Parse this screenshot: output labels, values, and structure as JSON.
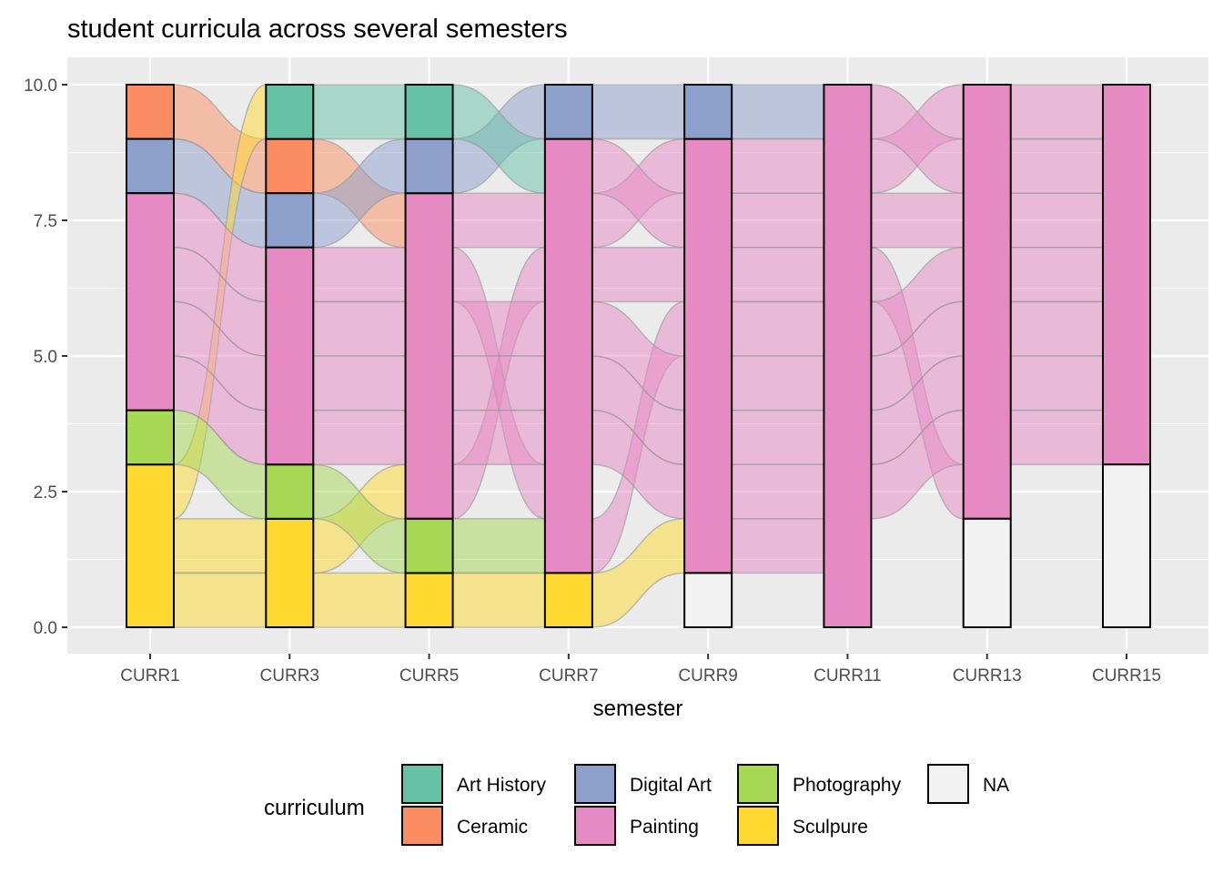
{
  "chart_data": {
    "type": "alluvial",
    "title": "student curricula across several semesters",
    "xlabel": "semester",
    "ylabel": "",
    "ylim": [
      0,
      10
    ],
    "yticks": [
      "0.0",
      "2.5",
      "5.0",
      "7.5",
      "10.0"
    ],
    "yticks_values": [
      0,
      2.5,
      5,
      7.5,
      10
    ],
    "categories": [
      "CURR1",
      "CURR3",
      "CURR5",
      "CURR7",
      "CURR9",
      "CURR11",
      "CURR13",
      "CURR15"
    ],
    "legend": {
      "title": "curriculum",
      "placement": "bottom",
      "entries": [
        "Art History",
        "Ceramic",
        "Digital Art",
        "Painting",
        "Photography",
        "Sculpure",
        "NA"
      ]
    },
    "colors": {
      "Art History": "#66C2A5",
      "Ceramic": "#FC8D62",
      "Digital Art": "#8DA0CB",
      "Painting": "#E78AC3",
      "Photography": "#A6D854",
      "Sculpure": "#FFD92F",
      "NA": "#F2F2F2"
    },
    "grid": true,
    "students": [
      [
        "Ceramic",
        "Ceramic",
        "Painting",
        "Painting",
        "Painting",
        "Painting",
        "Painting",
        "Painting"
      ],
      [
        "Digital Art",
        "Digital Art",
        "Digital Art",
        "Digital Art",
        "Digital Art",
        "Painting",
        "Painting",
        "Painting"
      ],
      [
        "Sculpure",
        "Art History",
        "Art History",
        "Painting",
        "Painting",
        "Painting",
        "Painting",
        "Painting"
      ],
      [
        "Sculpure",
        "Sculpure",
        "Painting",
        "Painting",
        "Painting",
        "Painting",
        "Painting",
        "NA"
      ],
      [
        "Sculpure",
        "Sculpure",
        "Sculpure",
        "Sculpure",
        "Painting",
        "Painting",
        "NA",
        "NA"
      ],
      [
        "Photography",
        "Photography",
        "Photography",
        "Painting",
        "Painting",
        "Painting",
        "Painting",
        "Painting"
      ],
      [
        "Painting",
        "Painting",
        "Painting",
        "Painting",
        "NA",
        "Painting",
        "NA",
        "NA"
      ],
      [
        "Painting",
        "Painting",
        "Painting",
        "Painting",
        "Painting",
        "Painting",
        "Painting",
        "Painting"
      ],
      [
        "Painting",
        "Painting",
        "Painting",
        "Painting",
        "Painting",
        "Painting",
        "Painting",
        "Painting"
      ],
      [
        "Painting",
        "Painting",
        "Painting",
        "Painting",
        "Painting",
        "Painting",
        "Painting",
        "Painting"
      ]
    ]
  }
}
